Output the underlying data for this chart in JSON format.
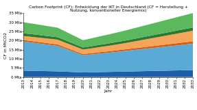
{
  "title": "Carbon Footprint (CF): Entwicklung der IKT in Deutschland (CF = Herstellung + Nutzung, konventioneller Energiemix)",
  "xlabel": "Jahr",
  "ylabel": "CF in MtCO2",
  "years": [
    2013,
    2014,
    2015,
    2016,
    2017,
    2018,
    2019,
    2020,
    2021,
    2022,
    2023,
    2024,
    2025,
    2026,
    2027,
    2028,
    2029,
    2030,
    2031,
    2032,
    2033
  ],
  "series": {
    "Haushalt Herstellung": [
      3.5,
      3.4,
      3.3,
      3.2,
      3.1,
      2.9,
      2.7,
      2.5,
      2.6,
      2.7,
      2.8,
      2.9,
      3.0,
      3.1,
      3.2,
      3.3,
      3.4,
      3.5,
      3.6,
      3.7,
      3.8
    ],
    "Haushalt Nutzung": [
      16.0,
      15.5,
      15.0,
      14.5,
      14.0,
      12.5,
      11.0,
      9.5,
      9.8,
      10.2,
      10.5,
      10.9,
      11.3,
      11.7,
      12.1,
      12.5,
      12.9,
      13.3,
      13.7,
      14.1,
      14.5
    ],
    "Rechenzentrum Herstellung": [
      0.8,
      0.8,
      0.8,
      0.8,
      0.8,
      0.75,
      0.7,
      0.65,
      0.7,
      0.75,
      0.8,
      0.85,
      0.9,
      0.95,
      1.0,
      1.05,
      1.1,
      1.15,
      1.2,
      1.25,
      1.3
    ],
    "Rechenzentrum Nutzung": [
      2.2,
      2.3,
      2.4,
      2.5,
      2.6,
      2.55,
      2.5,
      2.45,
      2.6,
      2.8,
      3.0,
      3.2,
      3.4,
      3.7,
      4.0,
      4.3,
      4.6,
      4.9,
      5.2,
      5.5,
      5.8
    ],
    "Telekommunikation Herstellung": [
      1.5,
      1.5,
      1.45,
      1.4,
      1.35,
      1.3,
      1.2,
      1.1,
      1.2,
      1.25,
      1.3,
      1.35,
      1.4,
      1.45,
      1.5,
      1.55,
      1.6,
      1.65,
      1.7,
      1.75,
      1.8
    ],
    "Telekommunikation Nutzung": [
      6.0,
      5.8,
      5.6,
      5.4,
      5.2,
      4.8,
      4.4,
      4.0,
      4.3,
      4.6,
      4.9,
      5.2,
      5.5,
      5.8,
      6.1,
      6.4,
      6.7,
      7.0,
      7.3,
      7.6,
      7.9
    ]
  },
  "colors": {
    "Haushalt Herstellung": "#1a5fa8",
    "Haushalt Nutzung": "#5baad6",
    "Rechenzentrum Herstellung": "#d95f0e",
    "Rechenzentrum Nutzung": "#f5a55a",
    "Telekommunikation Herstellung": "#2a7a32",
    "Telekommunikation Nutzung": "#5cb85c"
  },
  "ylim": [
    0,
    35
  ],
  "yticks": [
    0,
    5,
    10,
    15,
    20,
    25,
    30,
    35
  ],
  "ytick_labels": [
    "0 Mta",
    "5 Mta",
    "10 Mta",
    "15 Mta",
    "20 Mta",
    "25 Mta",
    "30 Mta",
    "35 Mta"
  ],
  "background_color": "#ffffff",
  "title_fontsize": 4.2,
  "axis_fontsize": 4.5,
  "tick_fontsize": 4.0,
  "legend_fontsize": 3.2
}
